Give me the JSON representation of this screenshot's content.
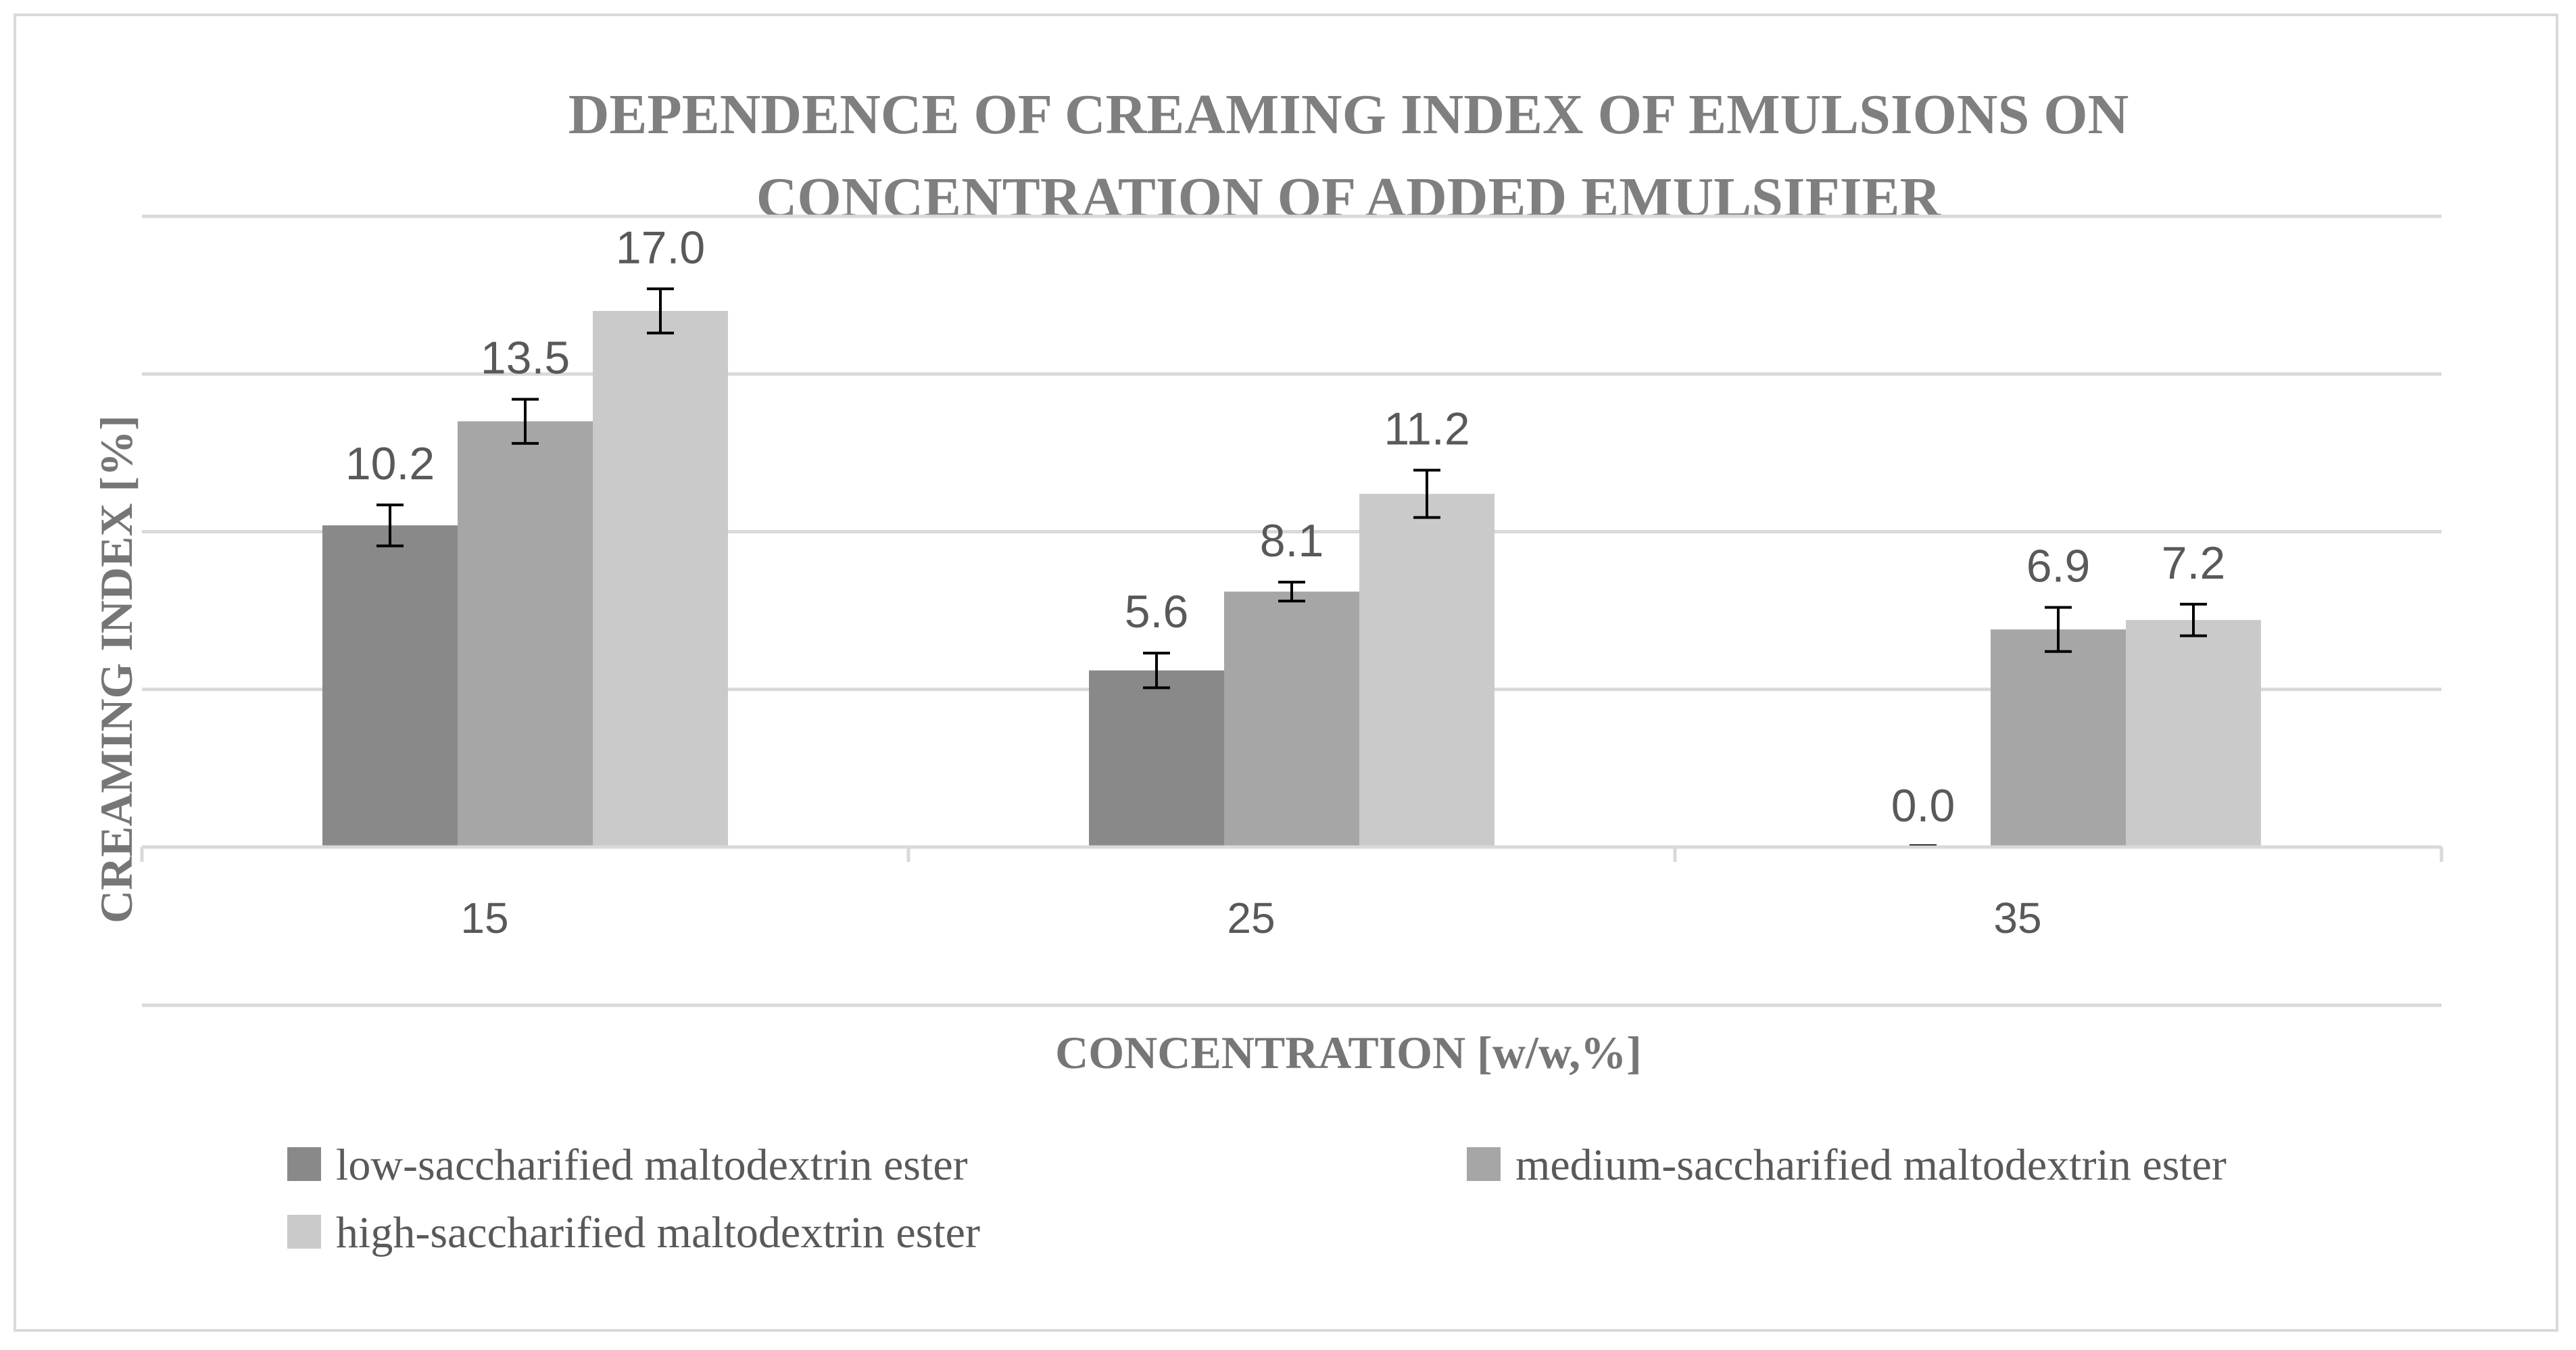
{
  "chart_data": {
    "type": "bar",
    "title_lines": [
      "DEPENDENCE OF CREAMING INDEX OF EMULSIONS ON",
      "CONCENTRATION OF ADDED EMULSIFIER"
    ],
    "xlabel": "CONCENTRATION [w/w,%]",
    "ylabel": "CREAMING INDEX [%]",
    "categories": [
      "15",
      "25",
      "35"
    ],
    "ylim": [
      0,
      20
    ],
    "gridlines": [
      0,
      5,
      10,
      15,
      20
    ],
    "series": [
      {
        "name": "low-saccharified maltodextrin ester",
        "color": "#898989",
        "values": [
          10.2,
          5.6,
          0.0
        ],
        "labels": [
          "10.2",
          "5.6",
          "0.0"
        ],
        "errors": [
          0.65,
          0.55,
          0.05
        ]
      },
      {
        "name": "medium-saccharified maltodextrin ester",
        "color": "#a6a6a6",
        "values": [
          13.5,
          8.1,
          6.9
        ],
        "labels": [
          "13.5",
          "8.1",
          "6.9"
        ],
        "errors": [
          0.7,
          0.3,
          0.7
        ]
      },
      {
        "name": "high-saccharified maltodextrin ester",
        "color": "#cacaca",
        "values": [
          17.0,
          11.2,
          7.2
        ],
        "labels": [
          "17.0",
          "11.2",
          "7.2"
        ],
        "errors": [
          0.7,
          0.75,
          0.5
        ]
      }
    ],
    "legend_position": "bottom",
    "grid": true
  }
}
